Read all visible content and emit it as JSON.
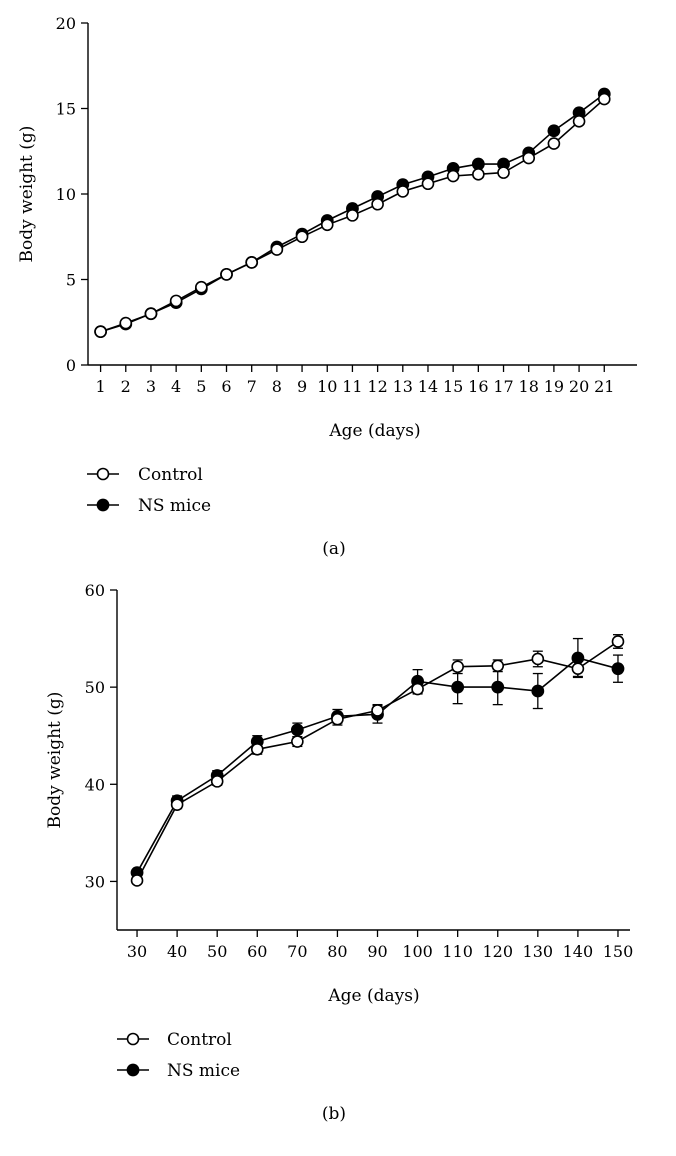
{
  "chart_data": [
    {
      "panel_label": "(a)",
      "type": "line",
      "xlabel": "Age (days)",
      "ylabel": "Body weight (g)",
      "xlim": [
        0.5,
        22.3
      ],
      "ylim": [
        0,
        20
      ],
      "x_ticks": [
        1,
        2,
        3,
        4,
        5,
        6,
        7,
        8,
        9,
        10,
        11,
        12,
        13,
        14,
        15,
        16,
        17,
        18,
        19,
        20,
        21
      ],
      "y_ticks": [
        0,
        5,
        10,
        15,
        20
      ],
      "grid": false,
      "legend_position": "bottom-left",
      "series": [
        {
          "name": "Control",
          "marker": "open-circle",
          "x": [
            1,
            2,
            3,
            4,
            5,
            6,
            7,
            8,
            9,
            10,
            11,
            12,
            13,
            14,
            15,
            16,
            17,
            18,
            19,
            20,
            21
          ],
          "values": [
            1.95,
            2.45,
            3.0,
            3.75,
            4.55,
            5.3,
            6.0,
            6.75,
            7.5,
            8.2,
            8.75,
            9.4,
            10.15,
            10.6,
            11.05,
            11.15,
            11.25,
            12.1,
            12.95,
            14.25,
            15.55
          ]
        },
        {
          "name": "NS mice",
          "marker": "filled-circle",
          "x": [
            1,
            2,
            3,
            4,
            5,
            6,
            7,
            8,
            9,
            10,
            11,
            12,
            13,
            14,
            15,
            16,
            17,
            18,
            19,
            20,
            21
          ],
          "values": [
            1.95,
            2.4,
            3.0,
            3.65,
            4.45,
            5.3,
            6.0,
            6.9,
            7.65,
            8.45,
            9.15,
            9.85,
            10.55,
            11.0,
            11.5,
            11.75,
            11.75,
            12.4,
            13.7,
            14.75,
            15.85
          ]
        }
      ]
    },
    {
      "panel_label": "(b)",
      "type": "line",
      "xlabel": "Age (days)",
      "ylabel": "Body weight (g)",
      "xlim": [
        25,
        153
      ],
      "ylim": [
        25,
        60
      ],
      "x_ticks": [
        30,
        40,
        50,
        60,
        70,
        80,
        90,
        100,
        110,
        120,
        130,
        140,
        150
      ],
      "y_ticks": [
        30,
        40,
        50,
        60
      ],
      "grid": false,
      "legend_position": "bottom-left",
      "series": [
        {
          "name": "Control",
          "marker": "open-circle",
          "x": [
            30,
            40,
            50,
            60,
            70,
            80,
            90,
            100,
            110,
            120,
            130,
            140,
            150
          ],
          "values": [
            30.1,
            37.9,
            40.3,
            43.6,
            44.4,
            46.7,
            47.6,
            49.8,
            52.1,
            52.2,
            52.9,
            51.9,
            54.7
          ],
          "errors": [
            0.3,
            0.4,
            0.4,
            0.5,
            0.5,
            0.6,
            0.6,
            0.5,
            0.7,
            0.6,
            0.8,
            0.8,
            0.7
          ]
        },
        {
          "name": "NS mice",
          "marker": "filled-circle",
          "x": [
            30,
            40,
            50,
            60,
            70,
            80,
            90,
            100,
            110,
            120,
            130,
            140,
            150
          ],
          "values": [
            30.9,
            38.3,
            40.9,
            44.4,
            45.6,
            47.0,
            47.2,
            50.6,
            50.0,
            50.0,
            49.6,
            53.0,
            51.9
          ],
          "errors": [
            0.3,
            0.5,
            0.5,
            0.6,
            0.7,
            0.7,
            0.9,
            1.2,
            1.7,
            1.8,
            1.8,
            2.0,
            1.4
          ]
        }
      ]
    }
  ]
}
